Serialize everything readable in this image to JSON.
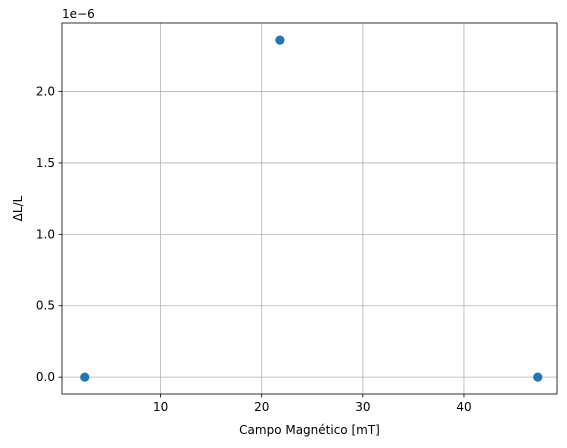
{
  "chart_data": {
    "type": "scatter",
    "title": "",
    "xlabel": "Campo Magnético [mT]",
    "ylabel": "ΔL/L",
    "y_offset_text": "1e−6",
    "xlim": [
      0.25,
      49.2
    ],
    "ylim": [
      -1.18e-07,
      2.48e-06
    ],
    "x_ticks": [
      10,
      20,
      30,
      40
    ],
    "x_tick_labels": [
      "10",
      "20",
      "30",
      "40"
    ],
    "y_ticks": [
      0.0,
      5e-07,
      1e-06,
      1.5e-06,
      2e-06
    ],
    "y_tick_labels": [
      "0.0",
      "0.5",
      "1.0",
      "1.5",
      "2.0"
    ],
    "grid": true,
    "marker_color": "#1f77b4",
    "points": [
      {
        "x": 2.5,
        "y": 0.0
      },
      {
        "x": 21.8,
        "y": 2.36e-06
      },
      {
        "x": 47.3,
        "y": 0.0
      }
    ]
  }
}
